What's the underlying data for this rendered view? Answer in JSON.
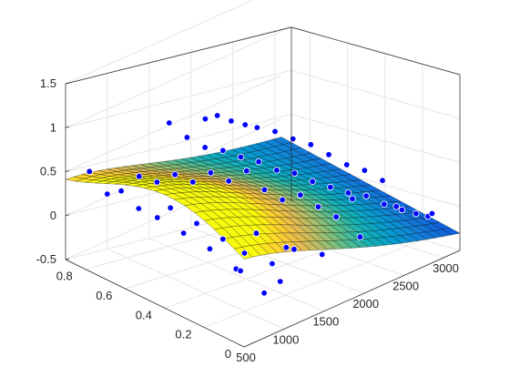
{
  "chart_data": {
    "type": "surface3d",
    "title": "",
    "zlim": [
      -0.5,
      1.5
    ],
    "xlim": [
      500,
      3200
    ],
    "ylim": [
      0,
      0.9
    ],
    "z_ticks": [
      "-0.5",
      "0",
      "0.5",
      "1",
      "1.5"
    ],
    "x_ticks": [
      "500",
      "1000",
      "1500",
      "2000",
      "2500",
      "3000"
    ],
    "y_ticks": [
      "0",
      "0.2",
      "0.4",
      "0.6",
      "0.8"
    ],
    "grid": true,
    "surface": {
      "description_values_only": true,
      "x_range": [
        500,
        3200
      ],
      "y_range": [
        0,
        0.9
      ],
      "colormap": "parula"
    },
    "points_color": "#0000ff",
    "edge_color": "#000000",
    "series": [
      {
        "type": "scatter3d",
        "points": [
          [
            600,
            0.82,
            0.55
          ],
          [
            650,
            0.75,
            0.35
          ],
          [
            700,
            0.7,
            0.42
          ],
          [
            720,
            0.62,
            0.3
          ],
          [
            780,
            0.55,
            0.25
          ],
          [
            820,
            0.5,
            0.4
          ],
          [
            860,
            0.45,
            0.15
          ],
          [
            900,
            0.4,
            0.3
          ],
          [
            940,
            0.35,
            0.05
          ],
          [
            980,
            0.3,
            0.2
          ],
          [
            1020,
            0.25,
            -0.1
          ],
          [
            1050,
            0.22,
            0.1
          ],
          [
            1100,
            0.18,
            0.35
          ],
          [
            1150,
            0.12,
            0.05
          ],
          [
            1200,
            0.1,
            -0.15
          ],
          [
            1250,
            0.05,
            0.25
          ],
          [
            800,
            0.65,
            0.6
          ],
          [
            900,
            0.6,
            0.55
          ],
          [
            1000,
            0.55,
            0.65
          ],
          [
            1100,
            0.5,
            0.58
          ],
          [
            1200,
            0.45,
            0.7
          ],
          [
            1300,
            0.4,
            0.62
          ],
          [
            1400,
            0.35,
            0.75
          ],
          [
            1500,
            0.3,
            0.55
          ],
          [
            1600,
            0.25,
            0.45
          ],
          [
            1700,
            0.2,
            0.52
          ],
          [
            1800,
            0.15,
            0.4
          ],
          [
            1900,
            0.1,
            0.3
          ],
          [
            1300,
            0.7,
            0.95
          ],
          [
            1400,
            0.65,
            0.8
          ],
          [
            1500,
            0.6,
            0.7
          ],
          [
            1600,
            0.55,
            0.68
          ],
          [
            1700,
            0.5,
            0.62
          ],
          [
            1800,
            0.45,
            0.58
          ],
          [
            1900,
            0.4,
            0.5
          ],
          [
            2000,
            0.35,
            0.48
          ],
          [
            2100,
            0.3,
            0.4
          ],
          [
            2200,
            0.25,
            0.35
          ],
          [
            2300,
            0.2,
            0.3
          ],
          [
            2400,
            0.15,
            0.28
          ],
          [
            2500,
            0.1,
            0.2
          ],
          [
            2600,
            0.05,
            0.15
          ],
          [
            2700,
            0.02,
            0.1
          ],
          [
            2800,
            0.0,
            0.05
          ],
          [
            2000,
            0.8,
            0.6
          ],
          [
            2100,
            0.78,
            0.62
          ],
          [
            2200,
            0.75,
            0.55
          ],
          [
            2300,
            0.72,
            0.5
          ],
          [
            2400,
            0.7,
            0.45
          ],
          [
            2500,
            0.65,
            0.42
          ],
          [
            2600,
            0.6,
            0.35
          ],
          [
            2700,
            0.55,
            0.3
          ],
          [
            2800,
            0.5,
            0.2
          ],
          [
            2900,
            0.45,
            0.1
          ],
          [
            3000,
            0.4,
            0.05
          ],
          [
            3100,
            0.35,
            -0.05
          ],
          [
            1000,
            0.1,
            -0.2
          ],
          [
            1200,
            0.3,
            -0.25
          ],
          [
            1400,
            0.15,
            0.1
          ],
          [
            1600,
            0.05,
            0.05
          ],
          [
            2200,
            0.1,
            -0.05
          ],
          [
            2600,
            0.3,
            0.0
          ],
          [
            2900,
            0.2,
            -0.1
          ],
          [
            3100,
            0.1,
            -0.15
          ]
        ]
      }
    ]
  }
}
